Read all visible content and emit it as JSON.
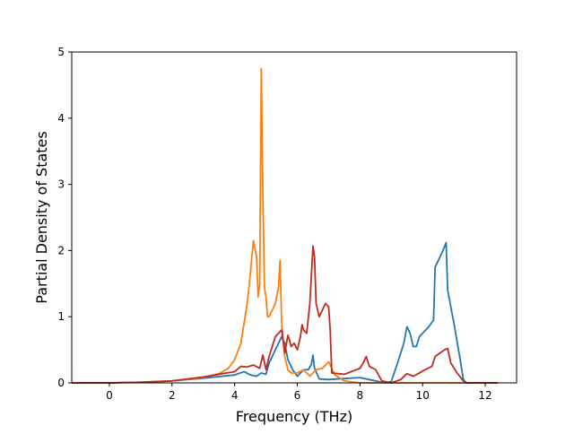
{
  "chart_data": {
    "type": "line",
    "title": "",
    "xlabel": "Frequency (THz)",
    "ylabel": "Partial Density of States",
    "xlim": [
      -1.2,
      13.0
    ],
    "ylim": [
      0,
      5
    ],
    "xticks": [
      0,
      2,
      4,
      6,
      8,
      10,
      12
    ],
    "yticks": [
      0,
      1,
      2,
      3,
      4,
      5
    ],
    "grid": false,
    "legend": "none",
    "series": [
      {
        "color": "#1f77b4",
        "x": [
          -1.2,
          0,
          1,
          2,
          3,
          4,
          4.3,
          4.5,
          4.7,
          4.85,
          5.0,
          5.1,
          5.3,
          5.5,
          5.6,
          5.7,
          5.85,
          6.0,
          6.2,
          6.35,
          6.45,
          6.5,
          6.55,
          6.7,
          7.0,
          7.3,
          8.0,
          8.3,
          8.8,
          9.0,
          9.2,
          9.4,
          9.5,
          9.6,
          9.7,
          9.8,
          9.9,
          10.0,
          10.2,
          10.35,
          10.4,
          10.5,
          10.65,
          10.75,
          10.8,
          11.0,
          11.2,
          11.3,
          11.4,
          12.4
        ],
        "y": [
          0,
          0,
          0.01,
          0.03,
          0.07,
          0.12,
          0.17,
          0.12,
          0.1,
          0.15,
          0.13,
          0.3,
          0.5,
          0.7,
          0.6,
          0.35,
          0.2,
          0.1,
          0.2,
          0.2,
          0.28,
          0.42,
          0.22,
          0.06,
          0.05,
          0.06,
          0.08,
          0.05,
          0.0,
          0.02,
          0.3,
          0.6,
          0.85,
          0.75,
          0.55,
          0.55,
          0.7,
          0.75,
          0.85,
          0.95,
          1.75,
          1.85,
          2.0,
          2.12,
          1.4,
          0.9,
          0.35,
          0.05,
          0,
          0
        ]
      },
      {
        "color": "#ff7f0e",
        "x": [
          -1.2,
          0,
          1,
          2,
          3,
          3.5,
          3.8,
          4.0,
          4.2,
          4.4,
          4.5,
          4.6,
          4.7,
          4.75,
          4.8,
          4.85,
          4.9,
          4.95,
          5.0,
          5.05,
          5.1,
          5.2,
          5.3,
          5.4,
          5.45,
          5.5,
          5.6,
          5.7,
          5.8,
          6.0,
          6.2,
          6.4,
          6.6,
          6.8,
          7.0,
          7.2,
          7.5,
          8.0,
          9.0,
          12.4
        ],
        "y": [
          0,
          0,
          0.01,
          0.03,
          0.08,
          0.14,
          0.22,
          0.35,
          0.6,
          1.2,
          1.65,
          2.15,
          1.9,
          1.3,
          1.5,
          4.75,
          2.9,
          1.45,
          1.3,
          1.0,
          1.0,
          1.1,
          1.2,
          1.45,
          1.85,
          0.9,
          0.4,
          0.2,
          0.15,
          0.15,
          0.2,
          0.1,
          0.2,
          0.22,
          0.32,
          0.12,
          0.03,
          0,
          0,
          0
        ]
      },
      {
        "color": "#bf2c1f",
        "x": [
          -1.2,
          0,
          1,
          2,
          3,
          4.0,
          4.2,
          4.4,
          4.6,
          4.8,
          4.9,
          5.0,
          5.1,
          5.2,
          5.3,
          5.5,
          5.6,
          5.7,
          5.75,
          5.8,
          5.9,
          6.0,
          6.1,
          6.15,
          6.2,
          6.3,
          6.4,
          6.5,
          6.55,
          6.6,
          6.7,
          6.8,
          6.9,
          7.0,
          7.05,
          7.1,
          7.5,
          8.0,
          8.1,
          8.2,
          8.3,
          8.5,
          8.7,
          9.0,
          9.3,
          9.5,
          9.7,
          9.9,
          10.0,
          10.3,
          10.4,
          10.7,
          10.8,
          10.9,
          11.1,
          11.3,
          11.4,
          12.4
        ],
        "y": [
          0,
          0,
          0.01,
          0.03,
          0.09,
          0.17,
          0.25,
          0.24,
          0.27,
          0.22,
          0.42,
          0.2,
          0.4,
          0.55,
          0.7,
          0.8,
          0.45,
          0.72,
          0.65,
          0.55,
          0.6,
          0.5,
          0.7,
          0.88,
          0.8,
          0.75,
          1.2,
          2.07,
          1.9,
          1.2,
          1.0,
          1.1,
          1.2,
          1.15,
          0.8,
          0.15,
          0.13,
          0.22,
          0.3,
          0.4,
          0.25,
          0.2,
          0.03,
          0.0,
          0.05,
          0.14,
          0.1,
          0.15,
          0.18,
          0.25,
          0.4,
          0.5,
          0.52,
          0.3,
          0.15,
          0.03,
          0,
          0
        ]
      }
    ]
  }
}
